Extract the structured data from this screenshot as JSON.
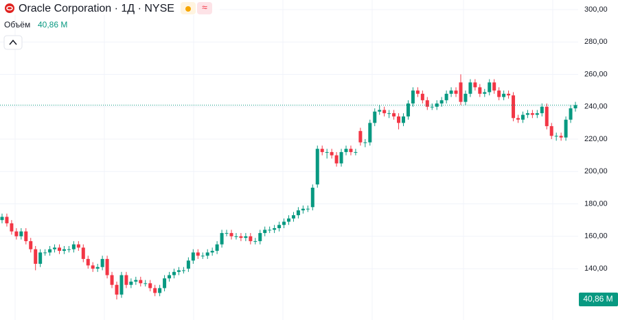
{
  "header": {
    "title": "Oracle Corporation · 1Д · NYSE",
    "volume_label": "Объём",
    "volume_value": "40,86 M"
  },
  "chart_data": {
    "type": "candlestick",
    "up_color": "#089981",
    "down_color": "#f23645",
    "open": [
      170,
      172,
      168,
      163,
      160,
      163,
      157,
      152,
      143,
      150,
      150,
      152,
      153,
      151,
      152,
      152,
      155,
      153,
      146,
      142,
      140,
      141,
      146,
      136,
      130,
      124,
      136,
      130,
      132,
      133,
      131,
      131,
      128,
      125,
      128,
      134,
      136,
      138,
      139,
      140,
      145,
      150,
      148,
      148,
      150,
      151,
      155,
      162,
      162,
      160,
      160,
      159,
      160,
      157,
      157,
      162,
      164,
      164,
      165,
      167,
      169,
      171,
      173,
      176,
      177,
      178,
      192,
      214,
      212,
      212,
      210,
      205,
      212,
      214,
      212,
      225,
      218,
      218,
      230,
      237,
      238,
      236,
      236,
      234,
      230,
      234,
      242,
      250,
      248,
      244,
      240,
      240,
      242,
      244,
      248,
      250,
      255,
      243,
      248,
      255,
      252,
      248,
      249,
      255,
      250,
      246,
      248,
      247,
      233,
      232,
      235,
      236,
      235,
      236,
      240,
      228,
      222,
      222,
      221,
      232,
      239
    ],
    "high": [
      174,
      174,
      170,
      165,
      165,
      165,
      159,
      154,
      152,
      152,
      154,
      155,
      155,
      154,
      154,
      157,
      157,
      155,
      148,
      144,
      143,
      148,
      148,
      138,
      132,
      138,
      138,
      134,
      135,
      135,
      133,
      133,
      130,
      130,
      136,
      138,
      140,
      141,
      141,
      147,
      152,
      152,
      150,
      152,
      153,
      157,
      164,
      164,
      164,
      162,
      162,
      162,
      162,
      159,
      164,
      166,
      166,
      167,
      169,
      171,
      173,
      175,
      178,
      179,
      179,
      192,
      216,
      216,
      214,
      214,
      212,
      214,
      216,
      216,
      214,
      227,
      220,
      232,
      239,
      241,
      240,
      238,
      238,
      236,
      236,
      244,
      252,
      252,
      250,
      246,
      242,
      244,
      246,
      250,
      252,
      252,
      260,
      250,
      257,
      257,
      254,
      251,
      257,
      257,
      252,
      250,
      250,
      249,
      235,
      237,
      238,
      238,
      238,
      242,
      242,
      230,
      224,
      224,
      234,
      241,
      243
    ],
    "low": [
      168,
      166,
      161,
      158,
      158,
      155,
      150,
      139,
      141,
      148,
      148,
      150,
      149,
      149,
      150,
      150,
      151,
      144,
      140,
      138,
      138,
      139,
      134,
      128,
      121,
      122,
      128,
      128,
      130,
      129,
      129,
      126,
      123,
      123,
      126,
      132,
      134,
      136,
      137,
      138,
      143,
      146,
      146,
      146,
      148,
      149,
      153,
      160,
      158,
      158,
      157,
      157,
      155,
      155,
      155,
      160,
      162,
      162,
      163,
      165,
      167,
      169,
      171,
      174,
      175,
      176,
      190,
      210,
      208,
      208,
      203,
      203,
      210,
      210,
      210,
      216,
      215,
      216,
      228,
      235,
      234,
      233,
      232,
      226,
      228,
      232,
      240,
      246,
      242,
      238,
      238,
      238,
      240,
      242,
      246,
      246,
      241,
      241,
      246,
      250,
      246,
      246,
      247,
      248,
      244,
      244,
      245,
      231,
      230,
      230,
      233,
      233,
      233,
      234,
      226,
      220,
      219,
      219,
      219,
      230,
      237
    ],
    "close": [
      172,
      168,
      163,
      160,
      163,
      157,
      152,
      143,
      150,
      150,
      152,
      153,
      151,
      152,
      152,
      155,
      153,
      146,
      142,
      140,
      141,
      146,
      136,
      130,
      124,
      136,
      130,
      132,
      133,
      131,
      131,
      128,
      125,
      128,
      134,
      136,
      138,
      139,
      139,
      145,
      150,
      148,
      148,
      150,
      151,
      155,
      162,
      162,
      160,
      160,
      159,
      160,
      157,
      157,
      162,
      164,
      164,
      165,
      167,
      169,
      171,
      173,
      176,
      177,
      177,
      190,
      214,
      212,
      212,
      210,
      205,
      212,
      214,
      212,
      212,
      218,
      218,
      230,
      237,
      238,
      236,
      236,
      234,
      230,
      234,
      242,
      250,
      248,
      244,
      240,
      240,
      242,
      244,
      248,
      250,
      248,
      243,
      248,
      255,
      252,
      248,
      249,
      255,
      250,
      246,
      248,
      247,
      233,
      232,
      235,
      236,
      235,
      236,
      240,
      228,
      222,
      222,
      221,
      232,
      239,
      241
    ],
    "ylim": [
      108.3,
      305.9
    ],
    "yticks": [
      {
        "value": 140,
        "label": "140,00"
      },
      {
        "value": 160,
        "label": "160,00"
      },
      {
        "value": 180,
        "label": "180,00"
      },
      {
        "value": 200,
        "label": "200,00"
      },
      {
        "value": 220,
        "label": "220,00"
      },
      {
        "value": 240,
        "label": "240,00"
      },
      {
        "value": 260,
        "label": "260,00"
      },
      {
        "value": 280,
        "label": "280,00"
      },
      {
        "value": 300,
        "label": "300,00"
      }
    ],
    "grid": true
  }
}
